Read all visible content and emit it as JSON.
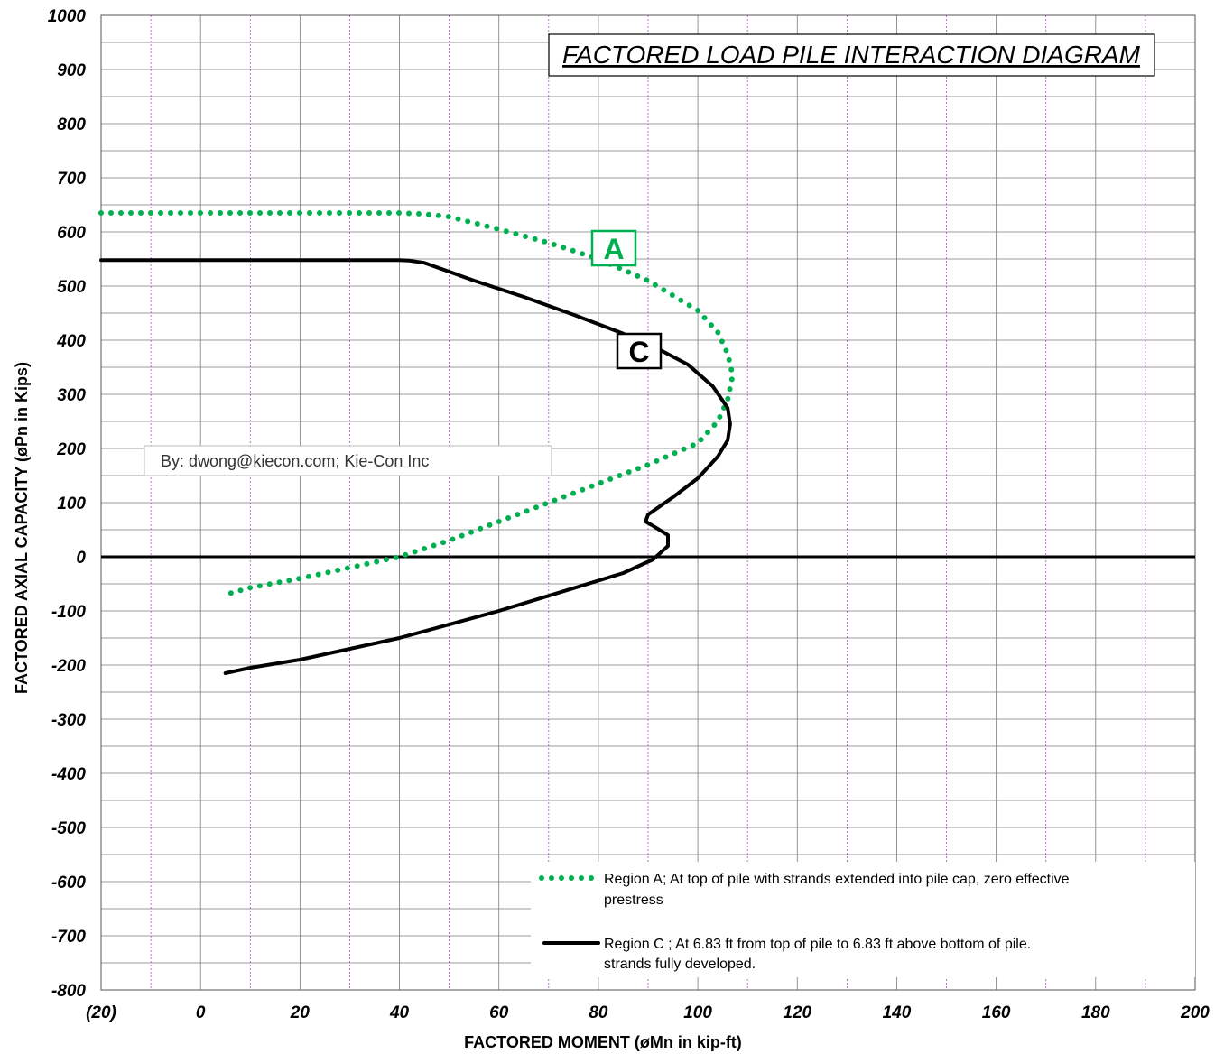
{
  "chart_data": {
    "type": "line",
    "title": "FACTORED LOAD PILE  INTERACTION  DIAGRAM",
    "xlabel": "FACTORED  MOMENT  (øMn in kip-ft)",
    "ylabel": "FACTORED  AXIAL  CAPACITY  (øPn in Kips)",
    "xlim": [
      -20,
      200
    ],
    "ylim": [
      -800,
      1000
    ],
    "x_tick_labels": [
      "(20)",
      "0",
      "20",
      "40",
      "60",
      "80",
      "100",
      "120",
      "140",
      "160",
      "180",
      "200"
    ],
    "y_tick_labels": [
      "1000",
      "900",
      "800",
      "700",
      "600",
      "500",
      "400",
      "300",
      "200",
      "100",
      "0",
      "-100",
      "-200",
      "-300",
      "-400",
      "-500",
      "-600",
      "-700",
      "-800"
    ],
    "grid": true,
    "legend_position": "bottom-right",
    "series": [
      {
        "name": "Region A;  At top of pile with strands extended into pile cap, zero effective prestress",
        "label_lines": [
          "Region A;  At top of pile with strands extended into pile cap, zero effective",
          "prestress"
        ],
        "style": "dotted",
        "color": "#00b050",
        "tag": "A",
        "x": [
          -20,
          0,
          20,
          40,
          45,
          50,
          60,
          70,
          80,
          90,
          100,
          104,
          106,
          107,
          106,
          104,
          100,
          90,
          80,
          70,
          60,
          50,
          40,
          30,
          20,
          10,
          5
        ],
        "y": [
          635,
          635,
          635,
          635,
          633,
          628,
          605,
          580,
          550,
          510,
          455,
          415,
          375,
          335,
          290,
          250,
          210,
          170,
          135,
          100,
          65,
          30,
          0,
          -20,
          -40,
          -57,
          -70
        ]
      },
      {
        "name": "Region C ;  At 6.83 ft from top of pile to 6.83 ft above bottom of pile. strands fully developed.",
        "label_lines": [
          "Region C ;  At 6.83 ft from top of pile to 6.83 ft above bottom of pile.",
          "strands fully developed."
        ],
        "style": "solid",
        "color": "#000000",
        "tag": "C",
        "x": [
          -20,
          0,
          20,
          40,
          42,
          45,
          55,
          65,
          75,
          85,
          92,
          98,
          103,
          106,
          106.5,
          106,
          104,
          100,
          95,
          90,
          89.5,
          91,
          94,
          94,
          91,
          85,
          75,
          60,
          40,
          20,
          10,
          5
        ],
        "y": [
          548,
          548,
          548,
          548,
          547,
          543,
          510,
          480,
          447,
          412,
          384,
          355,
          315,
          275,
          245,
          215,
          185,
          145,
          110,
          78,
          65,
          57,
          40,
          20,
          -5,
          -30,
          -58,
          -100,
          -150,
          -190,
          -205,
          -215
        ]
      }
    ],
    "annotations": [
      "By: dwong@kiecon.com;   Kie-Con Inc"
    ]
  }
}
